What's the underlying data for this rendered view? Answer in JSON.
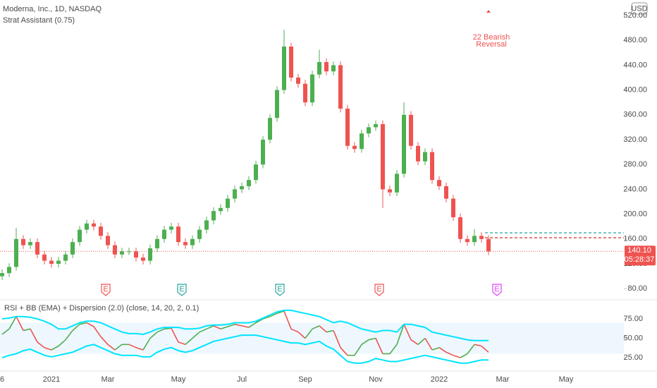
{
  "chart_data": [
    {
      "type": "candlestick",
      "title": "Moderna, Inc., 1D, NASDAQ",
      "subtitle": "Strat Assistant (0.75)",
      "currency": "USD",
      "categories": [
        "6",
        null,
        null,
        null,
        null,
        null,
        null,
        "2021",
        null,
        null,
        null,
        null,
        null,
        null,
        null,
        "Mar",
        null,
        null,
        null,
        null,
        null,
        null,
        null,
        null,
        null,
        "May",
        null,
        null,
        null,
        null,
        null,
        null,
        null,
        null,
        "Jul",
        null,
        null,
        null,
        null,
        null,
        null,
        null,
        null,
        "Sep",
        null,
        null,
        null,
        null,
        null,
        null,
        null,
        null,
        null,
        "Nov",
        null,
        null,
        null,
        null,
        null,
        null,
        null,
        null,
        "2022",
        null,
        null,
        null,
        null,
        null,
        null,
        null,
        null,
        "Mar",
        null,
        null,
        null,
        null,
        null,
        null,
        null,
        null,
        "May",
        null,
        null,
        null
      ],
      "open": [
        100,
        105,
        115,
        160,
        150,
        155,
        135,
        125,
        120,
        125,
        135,
        155,
        175,
        185,
        180,
        165,
        150,
        135,
        140,
        140,
        130,
        125,
        145,
        160,
        175,
        180,
        155,
        150,
        160,
        175,
        190,
        205,
        210,
        225,
        240,
        245,
        255,
        280,
        320,
        355,
        400,
        470,
        420,
        410,
        380,
        425,
        445,
        430,
        440,
        370,
        310,
        305,
        330,
        340,
        345,
        240,
        235,
        265,
        360,
        310,
        285,
        300,
        255,
        245,
        225,
        195,
        160,
        155,
        165,
        160,
        null,
        null,
        null,
        null,
        null,
        null,
        null,
        null,
        null,
        null,
        null,
        null,
        null,
        null
      ],
      "high": [
        111,
        121,
        178,
        166,
        161,
        161,
        141,
        131,
        131,
        141,
        161,
        181,
        191,
        191,
        186,
        171,
        156,
        146,
        146,
        146,
        136,
        151,
        166,
        181,
        186,
        186,
        161,
        166,
        181,
        196,
        211,
        216,
        231,
        246,
        251,
        261,
        286,
        326,
        361,
        406,
        497,
        476,
        426,
        416,
        431,
        465,
        451,
        446,
        446,
        376,
        316,
        336,
        346,
        351,
        351,
        246,
        271,
        380,
        366,
        316,
        306,
        306,
        261,
        251,
        231,
        201,
        166,
        176,
        171,
        166,
        null,
        null,
        null,
        null,
        null,
        null,
        null,
        null,
        null,
        null,
        null,
        null,
        null,
        null
      ],
      "low": [
        94,
        99,
        109,
        144,
        144,
        129,
        119,
        114,
        114,
        119,
        129,
        149,
        169,
        174,
        159,
        144,
        129,
        129,
        134,
        124,
        119,
        119,
        139,
        154,
        169,
        149,
        144,
        144,
        154,
        169,
        184,
        199,
        204,
        219,
        234,
        239,
        249,
        274,
        314,
        349,
        394,
        414,
        404,
        374,
        374,
        419,
        424,
        424,
        364,
        304,
        299,
        299,
        324,
        334,
        210,
        229,
        229,
        259,
        304,
        279,
        279,
        249,
        239,
        219,
        189,
        154,
        149,
        149,
        154,
        134,
        null,
        null,
        null,
        null,
        null,
        null,
        null,
        null,
        null,
        null,
        null,
        null,
        null,
        null
      ],
      "close": [
        105,
        115,
        160,
        150,
        155,
        135,
        125,
        120,
        125,
        135,
        155,
        175,
        185,
        180,
        165,
        150,
        135,
        140,
        140,
        130,
        125,
        145,
        160,
        175,
        180,
        155,
        150,
        160,
        175,
        190,
        205,
        210,
        225,
        240,
        245,
        255,
        280,
        320,
        355,
        400,
        470,
        420,
        410,
        380,
        425,
        445,
        430,
        440,
        370,
        310,
        305,
        330,
        340,
        345,
        240,
        235,
        265,
        360,
        310,
        285,
        300,
        255,
        245,
        225,
        195,
        160,
        155,
        165,
        160,
        140,
        null,
        null,
        null,
        null,
        null,
        null,
        null,
        null,
        null,
        null,
        null,
        null,
        null,
        null
      ],
      "up_color": "#4caf50",
      "down_color": "#ef5350",
      "ylim": [
        62,
        545
      ],
      "yticks": [
        {
          "value": 80,
          "label": "80.00"
        },
        {
          "value": 120,
          "label": "120.00"
        },
        {
          "value": 160,
          "label": "160.00"
        },
        {
          "value": 200,
          "label": "200.00"
        },
        {
          "value": 240,
          "label": "240.00"
        },
        {
          "value": 280,
          "label": "280.00"
        },
        {
          "value": 320,
          "label": "320.00"
        },
        {
          "value": 360,
          "label": "360.00"
        },
        {
          "value": 400,
          "label": "400.00"
        },
        {
          "value": 440,
          "label": "440.00"
        },
        {
          "value": 480,
          "label": "480.00"
        },
        {
          "value": 520,
          "label": "520.00"
        }
      ],
      "last_price": 140.1,
      "last_price_label": "140.10",
      "countdown": "05:28:37",
      "levels": [
        {
          "value": 170,
          "color": "#26a69a"
        },
        {
          "value": 162,
          "color": "#d32f2f"
        }
      ],
      "annotation": [
        "22 Bearish",
        "Reversal"
      ],
      "earnings": [
        {
          "label": "E",
          "color": "#ef5350"
        },
        {
          "label": "E",
          "color": "#26a69a"
        },
        {
          "label": "E",
          "color": "#26a69a"
        },
        {
          "label": "E",
          "color": "#ef5350"
        },
        {
          "label": "E",
          "color": "#e040fb"
        }
      ]
    },
    {
      "type": "line",
      "title": "RSI + BB (EMA) + Dispersion (2.0) (close, 14, 20, 2, 0.1)",
      "ylim": [
        10,
        90
      ],
      "yticks": [
        {
          "value": 25,
          "label": "25.00"
        },
        {
          "value": 50,
          "label": "50.00"
        },
        {
          "value": 75,
          "label": "75.00"
        }
      ],
      "band": [
        30,
        70
      ],
      "series": [
        {
          "name": "RSI",
          "color": "#4caf50",
          "values": [
            55,
            62,
            78,
            60,
            62,
            45,
            38,
            35,
            40,
            48,
            60,
            68,
            70,
            65,
            52,
            42,
            35,
            42,
            42,
            38,
            35,
            50,
            58,
            62,
            63,
            45,
            42,
            50,
            58,
            62,
            66,
            62,
            65,
            68,
            66,
            64,
            70,
            75,
            78,
            82,
            85,
            62,
            58,
            50,
            62,
            66,
            58,
            60,
            38,
            28,
            28,
            42,
            48,
            50,
            30,
            30,
            42,
            68,
            48,
            42,
            50,
            35,
            38,
            32,
            28,
            25,
            30,
            42,
            40,
            32,
            null,
            null,
            null,
            null,
            null,
            null,
            null,
            null,
            null,
            null,
            null,
            null,
            null,
            null
          ]
        },
        {
          "name": "Upper",
          "color": "#00e5ff",
          "values": [
            75,
            76,
            78,
            78,
            77,
            75,
            72,
            68,
            62,
            62,
            66,
            70,
            72,
            72,
            70,
            66,
            62,
            58,
            56,
            56,
            55,
            58,
            62,
            64,
            64,
            64,
            62,
            62,
            63,
            66,
            67,
            67,
            68,
            70,
            70,
            70,
            72,
            76,
            80,
            84,
            86,
            86,
            84,
            82,
            80,
            78,
            74,
            70,
            72,
            70,
            66,
            62,
            60,
            58,
            60,
            60,
            58,
            68,
            68,
            66,
            64,
            58,
            56,
            54,
            52,
            50,
            48,
            47,
            47,
            47,
            null,
            null,
            null,
            null,
            null,
            null,
            null,
            null,
            null,
            null,
            null,
            null,
            null,
            null
          ]
        },
        {
          "name": "Lower",
          "color": "#00e5ff",
          "values": [
            25,
            28,
            30,
            34,
            36,
            32,
            28,
            26,
            28,
            30,
            32,
            36,
            40,
            42,
            38,
            34,
            30,
            28,
            28,
            28,
            26,
            26,
            32,
            36,
            38,
            34,
            32,
            34,
            38,
            42,
            46,
            48,
            50,
            52,
            54,
            54,
            54,
            52,
            50,
            48,
            46,
            44,
            44,
            42,
            44,
            46,
            40,
            36,
            28,
            20,
            18,
            18,
            20,
            24,
            22,
            20,
            20,
            22,
            24,
            26,
            28,
            26,
            24,
            22,
            20,
            18,
            18,
            20,
            22,
            22,
            null,
            null,
            null,
            null,
            null,
            null,
            null,
            null,
            null,
            null,
            null,
            null,
            null,
            null
          ]
        }
      ],
      "down_color": "#ef5350"
    }
  ]
}
